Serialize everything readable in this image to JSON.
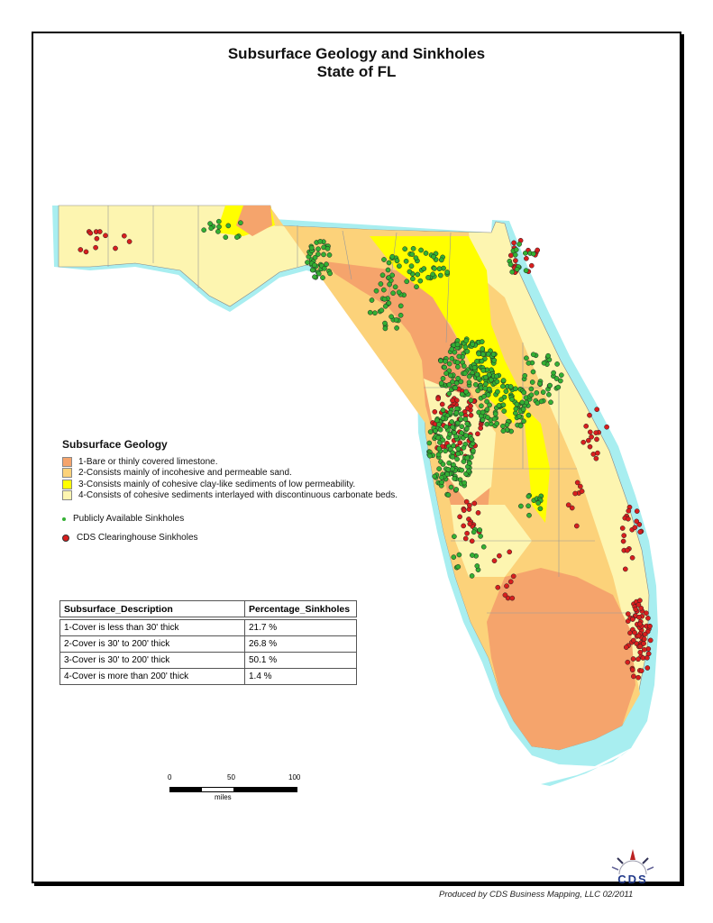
{
  "title": {
    "line1": "Subsurface Geology and Sinkholes",
    "line2": "State of FL"
  },
  "legend": {
    "heading": "Subsurface Geology",
    "classes": [
      {
        "label": "1-Bare or thinly covered limestone.",
        "color": "#f5a46c"
      },
      {
        "label": "2-Consists mainly of incohesive and permeable sand.",
        "color": "#fcd27a"
      },
      {
        "label": "3-Consists mainly of cohesive clay-like sediments of low permeability.",
        "color": "#ffff00"
      },
      {
        "label": "4-Consists of cohesive sediments interlayed with discontinuous carbonate beds.",
        "color": "#fdf5b0"
      }
    ],
    "points": [
      {
        "label": "Publicly Available Sinkholes",
        "color": "#33b033"
      },
      {
        "label": "CDS Clearinghouse Sinkholes",
        "color": "#d81e1e"
      }
    ]
  },
  "table": {
    "headers": [
      "Subsurface_Description",
      "Percentage_Sinkholes"
    ],
    "rows": [
      [
        "1-Cover is less than 30' thick",
        "21.7 %"
      ],
      [
        "2-Cover is 30' to 200' thick",
        "26.8 %"
      ],
      [
        "3-Cover is 30' to 200' thick",
        "50.1 %"
      ],
      [
        "4-Cover is more than 200' thick",
        "1.4 %"
      ]
    ]
  },
  "scale": {
    "ticks": [
      "0",
      "50",
      "100"
    ],
    "unit": "miles"
  },
  "colors": {
    "water_buffer": "#a8eef0"
  },
  "logo": {
    "text": "CDS",
    "subtext": "Business Mapping"
  },
  "footer": "Produced by CDS Business Mapping, LLC 02/2011"
}
